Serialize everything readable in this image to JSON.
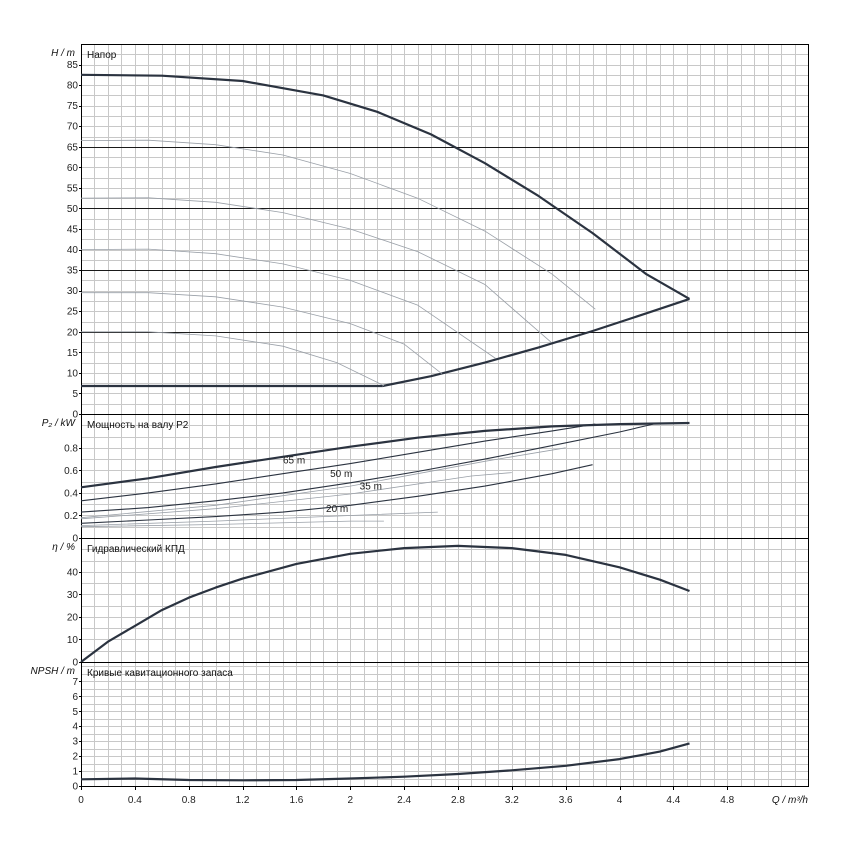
{
  "chart_data": {
    "type": "line",
    "x_axis": {
      "label": "Q / m³/h",
      "range": [
        0,
        5.4
      ],
      "ticks": [
        0,
        0.4,
        0.8,
        1.2,
        1.6,
        2,
        2.4,
        2.8,
        3.2,
        3.6,
        4,
        4.4,
        4.8
      ],
      "tick_labels": [
        "0",
        "0.4",
        "0.8",
        "1.2",
        "1.6",
        "2",
        "2.4",
        "2.8",
        "3.2",
        "3.6",
        "4",
        "4.4",
        "4.8"
      ],
      "minor_step": 0.1
    },
    "panels": [
      {
        "id": "head",
        "title": "Напор",
        "ylabel": "H / m",
        "ylim": [
          0,
          90
        ],
        "ticks": [
          0,
          5,
          10,
          15,
          20,
          25,
          30,
          35,
          40,
          45,
          50,
          55,
          60,
          65,
          70,
          75,
          80,
          85
        ],
        "minor_step": 2.5,
        "reference_lines": [
          20,
          35,
          50,
          65
        ],
        "series": [
          {
            "style": "main",
            "x": [
              0,
              0.6,
              1.2,
              1.8,
              2.2,
              2.6,
              3.0,
              3.4,
              3.8,
              4.2,
              4.52
            ],
            "y": [
              82.5,
              82.3,
              81,
              77.5,
              73.5,
              68,
              61,
              53,
              44,
              34,
              28
            ]
          },
          {
            "style": "main",
            "x": [
              0,
              2.24
            ],
            "y": [
              6.8,
              6.8
            ]
          },
          {
            "style": "main",
            "x": [
              2.24,
              2.6,
              3.0,
              3.4,
              3.8,
              4.2,
              4.52
            ],
            "y": [
              6.8,
              9.2,
              12.5,
              16.2,
              20.2,
              24.5,
              28
            ]
          },
          {
            "style": "thin",
            "x": [
              0,
              0.5,
              1.0,
              1.5,
              2.0,
              2.5,
              3.0,
              3.5,
              3.82
            ],
            "y": [
              66.5,
              66.6,
              65.5,
              63,
              58.5,
              52.5,
              44.5,
              34,
              25.5
            ]
          },
          {
            "style": "thin",
            "x": [
              0,
              0.5,
              1.0,
              1.5,
              2.0,
              2.5,
              3.0,
              3.49
            ],
            "y": [
              52.5,
              52.6,
              51.5,
              49,
              45,
              39.5,
              31.5,
              17.5
            ]
          },
          {
            "style": "thin",
            "x": [
              0,
              0.5,
              1.0,
              1.5,
              2.0,
              2.5,
              3.08
            ],
            "y": [
              40,
              40.1,
              39,
              36.5,
              32.5,
              26.5,
              13.5
            ]
          },
          {
            "style": "thin",
            "x": [
              0,
              0.5,
              1.0,
              1.5,
              2.0,
              2.4,
              2.68
            ],
            "y": [
              29.5,
              29.5,
              28.5,
              26,
              22,
              17,
              9.8
            ]
          },
          {
            "style": "thin",
            "x": [
              0,
              0.5,
              1.0,
              1.5,
              1.9,
              2.25
            ],
            "y": [
              20,
              20,
              19,
              16.5,
              12.5,
              6.9
            ]
          }
        ]
      },
      {
        "id": "power",
        "title": "Мощность на валу P2",
        "ylabel": "P₂ / kW",
        "ylim": [
          0,
          1.1
        ],
        "ticks": [
          0,
          0.2,
          0.4,
          0.6,
          0.8
        ],
        "tick_labels": [
          "0",
          "0.2",
          "0.4",
          "0.6",
          "0.8"
        ],
        "minor_step": 0.1,
        "annotations": [
          {
            "text": "65 m",
            "x": 1.5,
            "y": 0.66
          },
          {
            "text": "50 m",
            "x": 1.85,
            "y": 0.54
          },
          {
            "text": "35 m",
            "x": 2.07,
            "y": 0.43
          },
          {
            "text": "20 m",
            "x": 1.82,
            "y": 0.23
          }
        ],
        "series": [
          {
            "style": "main",
            "x": [
              0,
              0.5,
              1.0,
              1.5,
              2.0,
              2.5,
              3.0,
              3.5,
              4.0,
              4.52
            ],
            "y": [
              0.45,
              0.53,
              0.63,
              0.72,
              0.81,
              0.89,
              0.95,
              0.99,
              1.01,
              1.02
            ]
          },
          {
            "style": "mid",
            "x": [
              0,
              0.5,
              1.0,
              1.5,
              2.0,
              2.5,
              3.0,
              3.5,
              3.82
            ],
            "y": [
              0.33,
              0.4,
              0.48,
              0.57,
              0.66,
              0.76,
              0.86,
              0.95,
              1.01
            ]
          },
          {
            "style": "mid",
            "x": [
              0,
              0.5,
              1.0,
              1.5,
              2.0,
              2.5,
              3.0,
              3.5,
              4.0,
              4.25
            ],
            "y": [
              0.23,
              0.27,
              0.33,
              0.4,
              0.49,
              0.59,
              0.7,
              0.82,
              0.94,
              1.01
            ]
          },
          {
            "style": "mid",
            "x": [
              0,
              0.5,
              1.0,
              1.5,
              2.0,
              2.5,
              3.0,
              3.5,
              3.8
            ],
            "y": [
              0.13,
              0.16,
              0.19,
              0.23,
              0.29,
              0.37,
              0.46,
              0.57,
              0.65
            ]
          },
          {
            "style": "thin",
            "x": [
              0,
              1.0,
              2.0,
              3.0,
              3.6
            ],
            "y": [
              0.18,
              0.29,
              0.46,
              0.68,
              0.8
            ]
          },
          {
            "style": "thin",
            "x": [
              0,
              1.0,
              2.0,
              2.9,
              3.2
            ],
            "y": [
              0.17,
              0.26,
              0.39,
              0.55,
              0.58
            ]
          },
          {
            "style": "thin",
            "x": [
              0,
              1.0,
              2.0,
              2.65
            ],
            "y": [
              0.11,
              0.15,
              0.2,
              0.23
            ]
          },
          {
            "style": "thin",
            "x": [
              0,
              1.0,
              2.0,
              2.25
            ],
            "y": [
              0.1,
              0.12,
              0.15,
              0.15
            ]
          }
        ]
      },
      {
        "id": "efficiency",
        "title": "Гидравлический КПД",
        "ylabel": "η / %",
        "ylim": [
          0,
          55
        ],
        "ticks": [
          0,
          10,
          20,
          30,
          40
        ],
        "minor_step": 5,
        "series": [
          {
            "style": "main",
            "x": [
              0,
              0.2,
              0.4,
              0.6,
              0.8,
              1.0,
              1.2,
              1.6,
              2.0,
              2.4,
              2.8,
              3.2,
              3.6,
              4.0,
              4.3,
              4.52
            ],
            "y": [
              0,
              9,
              16,
              23,
              28.5,
              33,
              37,
              43.5,
              48,
              50.5,
              51.5,
              50.5,
              47.5,
              42,
              36.5,
              31.5
            ]
          }
        ]
      },
      {
        "id": "npsh",
        "title": "Кривые кавитационного запаса",
        "ylabel": "NPSH / m",
        "ylim": [
          0,
          8.3
        ],
        "ticks": [
          0,
          1,
          2,
          3,
          4,
          5,
          6,
          7
        ],
        "minor_step": 0.5,
        "series": [
          {
            "style": "main",
            "x": [
              0,
              0.4,
              0.8,
              1.2,
              1.6,
              2.0,
              2.4,
              2.8,
              3.2,
              3.6,
              4.0,
              4.3,
              4.52
            ],
            "y": [
              0.45,
              0.5,
              0.4,
              0.38,
              0.4,
              0.5,
              0.62,
              0.8,
              1.05,
              1.35,
              1.8,
              2.3,
              2.85
            ]
          }
        ]
      }
    ]
  }
}
